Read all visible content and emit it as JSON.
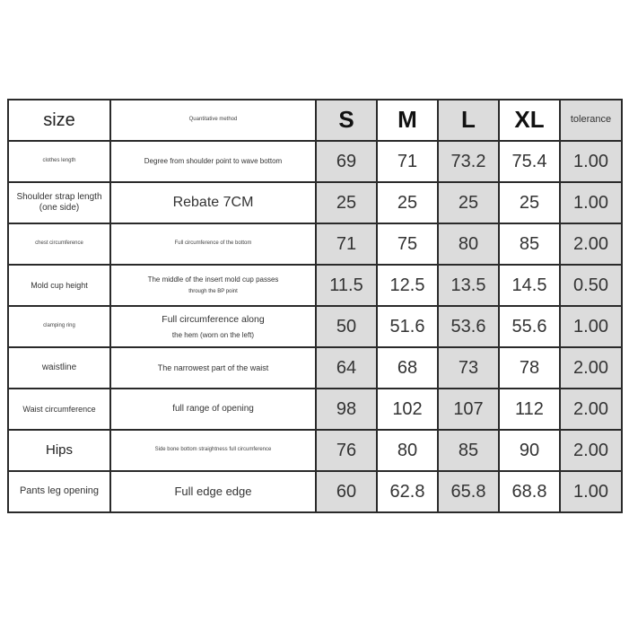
{
  "header": {
    "size_label": "size",
    "method_label": "Quantitative method",
    "sizes": [
      "S",
      "M",
      "L",
      "XL"
    ],
    "tolerance_label": "tolerance"
  },
  "rows": [
    {
      "name": "clothes length",
      "method": "Degree from shoulder point to wave bottom",
      "values": [
        "69",
        "71",
        "73.2",
        "75.4"
      ],
      "tolerance": "1.00"
    },
    {
      "name": "Shoulder strap length (one side)",
      "method": "Rebate 7CM",
      "values": [
        "25",
        "25",
        "25",
        "25"
      ],
      "tolerance": "1.00"
    },
    {
      "name": "chest circumference",
      "method": "Full circumference of the bottom",
      "values": [
        "71",
        "75",
        "80",
        "85"
      ],
      "tolerance": "2.00"
    },
    {
      "name": "Mold cup height",
      "method": "The middle of the insert mold cup passes",
      "method2": "through the BP point",
      "values": [
        "11.5",
        "12.5",
        "13.5",
        "14.5"
      ],
      "tolerance": "0.50"
    },
    {
      "name": "clamping ring",
      "method": "Full circumference along",
      "method2": "the hem (worn on the left)",
      "values": [
        "50",
        "51.6",
        "53.6",
        "55.6"
      ],
      "tolerance": "1.00"
    },
    {
      "name": "waistline",
      "method": "The narrowest part of the waist",
      "values": [
        "64",
        "68",
        "73",
        "78"
      ],
      "tolerance": "2.00"
    },
    {
      "name": "Waist circumference",
      "method": "full range of opening",
      "values": [
        "98",
        "102",
        "107",
        "112"
      ],
      "tolerance": "2.00"
    },
    {
      "name": "Hips",
      "method": "Side bone bottom straightness full circumference",
      "values": [
        "76",
        "80",
        "85",
        "90"
      ],
      "tolerance": "2.00"
    },
    {
      "name": "Pants leg opening",
      "method": "Full edge edge",
      "values": [
        "60",
        "62.8",
        "65.8",
        "68.8"
      ],
      "tolerance": "1.00"
    }
  ],
  "colors": {
    "shaded_column": "#dcdcdc",
    "border": "#2a2a2a"
  }
}
